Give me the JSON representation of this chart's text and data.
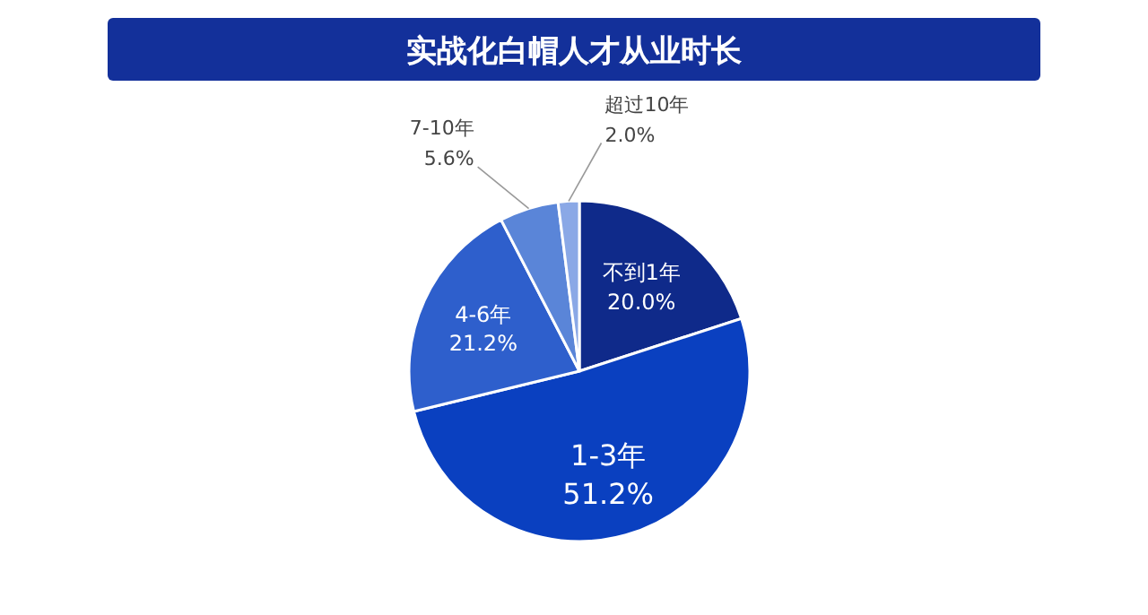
{
  "chart_data": {
    "type": "pie",
    "title": "实战化白帽人才从业时长",
    "categories": [
      "不到1年",
      "1-3年",
      "4-6年",
      "7-10年",
      "超过10年"
    ],
    "values": [
      20.0,
      51.2,
      21.2,
      5.6,
      2.0
    ],
    "value_labels": [
      "20.0%",
      "51.2%",
      "21.2%",
      "5.6%",
      "2.0%"
    ],
    "colors": [
      "#0f2a8a",
      "#0a40c0",
      "#2e5fcc",
      "#5a85d8",
      "#8aa8e6"
    ]
  }
}
